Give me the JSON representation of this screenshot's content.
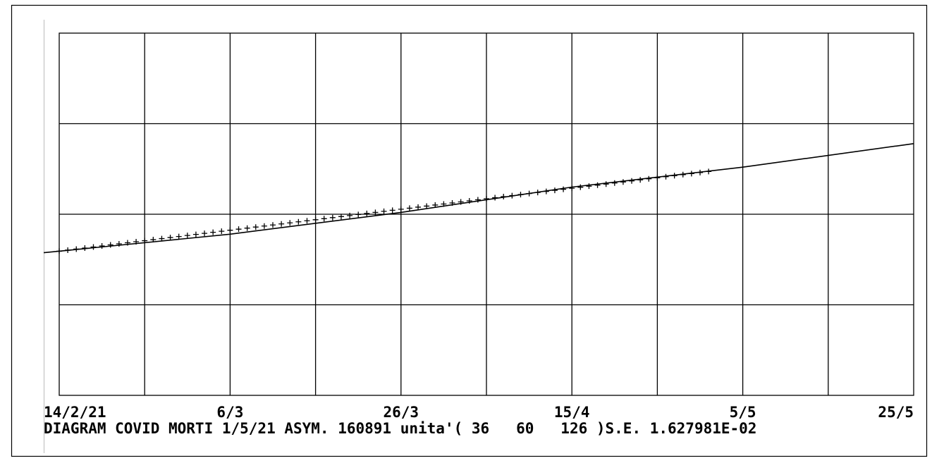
{
  "chart_data": {
    "type": "line",
    "x_tick_labels": [
      "14/2/21",
      "6/3",
      "26/3",
      "15/4",
      "5/5",
      "25/5"
    ],
    "x_tick_dates": [
      "2021-02-14",
      "2021-03-06",
      "2021-03-26",
      "2021-04-15",
      "2021-05-05",
      "2021-05-25"
    ],
    "xlim": [
      "2021-02-14",
      "2021-05-25"
    ],
    "caption": "DIAGRAM COVID MORTI 1/5/21 ASYM. 160891 unita'( 36   60   126 )S.E. 1.627981E-02",
    "grid": true,
    "grid_columns": 10,
    "grid_rows": 4,
    "series": [
      {
        "role": "fit",
        "x": [
          "2021-02-14",
          "2021-03-06",
          "2021-03-26",
          "2021-04-15",
          "2021-05-05",
          "2021-05-25"
        ],
        "y": [
          0.398,
          0.445,
          0.505,
          0.575,
          0.63,
          0.695
        ],
        "color": "#000000"
      },
      {
        "role": "observed",
        "marker": "+",
        "x_start": "2021-02-14",
        "x_end": "2021-05-01",
        "step_days": 1,
        "y_start": 0.398,
        "y_end": 0.618,
        "color": "#000000"
      }
    ]
  },
  "colors": {
    "background": "#ffffff",
    "foreground": "#000000",
    "border": "#000000"
  }
}
